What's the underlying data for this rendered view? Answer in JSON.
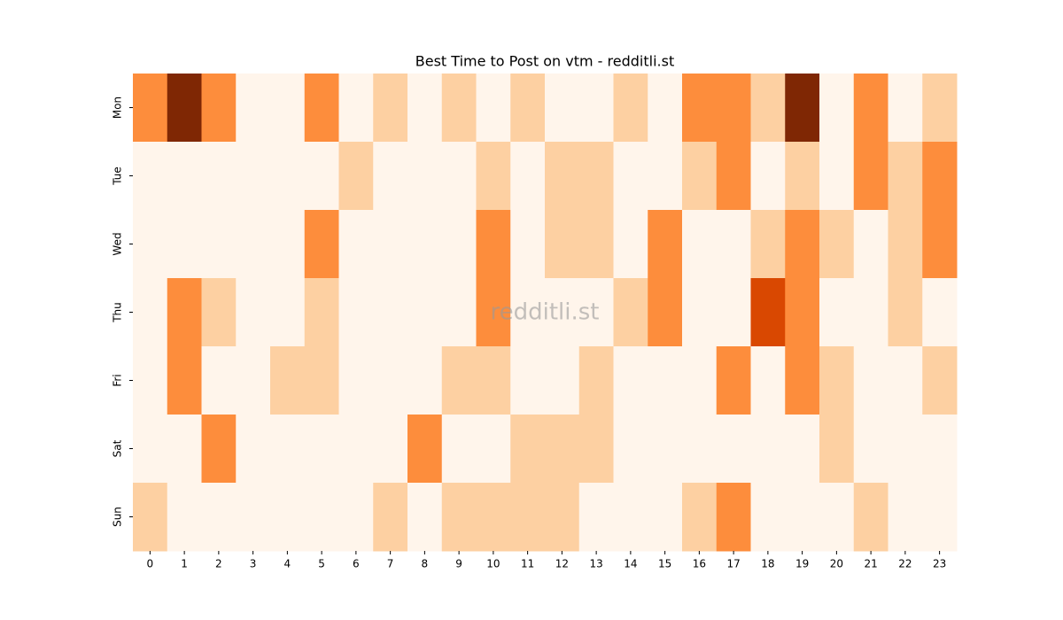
{
  "chart_data": {
    "type": "heatmap",
    "title": "Best Time to Post on vtm - redditli.st",
    "watermark": "redditli.st",
    "x": [
      "0",
      "1",
      "2",
      "3",
      "4",
      "5",
      "6",
      "7",
      "8",
      "9",
      "10",
      "11",
      "12",
      "13",
      "14",
      "15",
      "16",
      "17",
      "18",
      "19",
      "20",
      "21",
      "22",
      "23"
    ],
    "y": [
      "Mon",
      "Tue",
      "Wed",
      "Thu",
      "Fri",
      "Sat",
      "Sun"
    ],
    "colors": [
      "#fff5eb",
      "#fdd0a2",
      "#fd8d3c",
      "#d94801",
      "#7f2704"
    ],
    "values": [
      [
        2,
        4,
        2,
        0,
        0,
        2,
        0,
        1,
        0,
        1,
        0,
        1,
        0,
        0,
        1,
        0,
        2,
        2,
        1,
        4,
        0,
        2,
        0,
        1
      ],
      [
        0,
        0,
        0,
        0,
        0,
        0,
        1,
        0,
        0,
        0,
        1,
        0,
        1,
        1,
        0,
        0,
        1,
        2,
        0,
        1,
        0,
        2,
        1,
        2
      ],
      [
        0,
        0,
        0,
        0,
        0,
        2,
        0,
        0,
        0,
        0,
        2,
        0,
        1,
        1,
        0,
        2,
        0,
        0,
        1,
        2,
        1,
        0,
        1,
        2
      ],
      [
        0,
        2,
        1,
        0,
        0,
        1,
        0,
        0,
        0,
        0,
        2,
        0,
        0,
        0,
        1,
        2,
        0,
        0,
        3,
        2,
        0,
        0,
        1,
        0
      ],
      [
        0,
        2,
        0,
        0,
        1,
        1,
        0,
        0,
        0,
        1,
        1,
        0,
        0,
        1,
        0,
        0,
        0,
        2,
        0,
        2,
        1,
        0,
        0,
        1
      ],
      [
        0,
        0,
        2,
        0,
        0,
        0,
        0,
        0,
        2,
        0,
        0,
        1,
        1,
        1,
        0,
        0,
        0,
        0,
        0,
        0,
        1,
        0,
        0,
        0
      ],
      [
        1,
        0,
        0,
        0,
        0,
        0,
        0,
        1,
        0,
        1,
        1,
        1,
        1,
        0,
        0,
        0,
        1,
        2,
        0,
        0,
        0,
        1,
        0,
        0
      ]
    ]
  }
}
